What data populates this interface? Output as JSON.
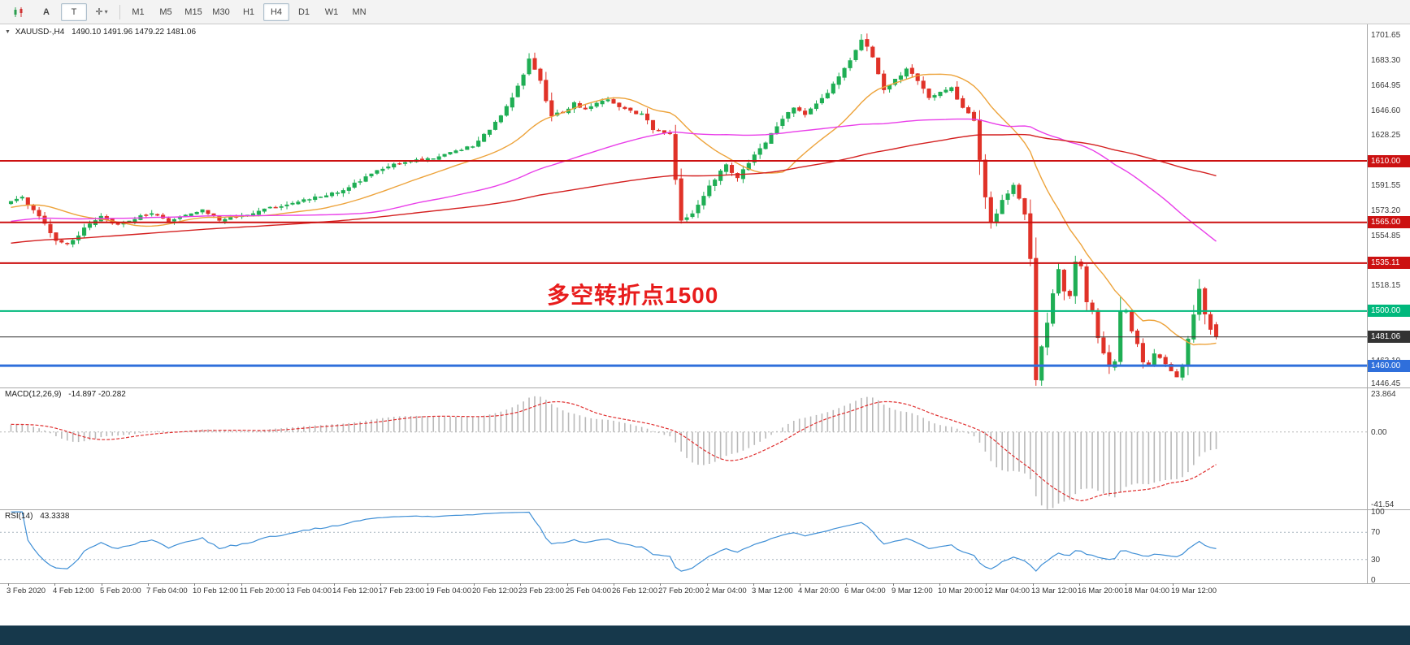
{
  "window": {
    "statusbar_color": "#16384b"
  },
  "toolbar": {
    "annotate_label": "A",
    "text_tool_label": "T",
    "cursor_glyph": "✛",
    "caret_glyph": "▾",
    "timeframes": [
      "M1",
      "M5",
      "M15",
      "M30",
      "H1",
      "H4",
      "D1",
      "W1",
      "MN"
    ],
    "active_timeframe": "H4"
  },
  "header": {
    "collapse_glyph": "▼",
    "symbol_text": "XAUUSD-,H4",
    "quote_text": "1490.10 1491.96 1479.22 1481.06"
  },
  "chart_data": {
    "type": "candlestick",
    "symbol": "XAUUSD-",
    "timeframe": "H4",
    "quote": {
      "open": 1490.1,
      "high": 1491.96,
      "low": 1479.22,
      "close": 1481.06
    },
    "price_axis": {
      "min": 1444,
      "max": 1710,
      "ticks": [
        "1701.65",
        "1683.30",
        "1664.95",
        "1646.60",
        "1628.25",
        "1609.90",
        "1591.55",
        "1573.20",
        "1554.85",
        "1536.50",
        "1518.15",
        "1499.80",
        "1481.45",
        "1463.10",
        "1446.45"
      ]
    },
    "levels": [
      {
        "price": 1610.0,
        "label": "1610.00",
        "color": "#cc1111",
        "width": 2
      },
      {
        "price": 1565.0,
        "label": "1565.00",
        "color": "#cc1111",
        "width": 2
      },
      {
        "price": 1535.11,
        "label": "1535.11",
        "color": "#cc1111",
        "width": 2
      },
      {
        "price": 1500.0,
        "label": "1500.00",
        "color": "#00b87c",
        "width": 2
      },
      {
        "price": 1460.0,
        "label": "1460.00",
        "color": "#2f6fdb",
        "width": 3
      }
    ],
    "current_price": {
      "value": 1481.06,
      "label": "1481.06",
      "color": "#333333"
    },
    "annotation": {
      "text": "多空转折点1500",
      "color": "#e81c1c",
      "x_frac": 0.4,
      "y_price": 1511
    },
    "candles": {
      "count": 215,
      "up_color": "#1fae54",
      "down_color": "#e03228",
      "anchors": [
        [
          0,
          1578
        ],
        [
          3,
          1583
        ],
        [
          6,
          1570
        ],
        [
          9,
          1552
        ],
        [
          11,
          1549
        ],
        [
          14,
          1560
        ],
        [
          17,
          1569
        ],
        [
          20,
          1563
        ],
        [
          23,
          1568
        ],
        [
          26,
          1572
        ],
        [
          29,
          1566
        ],
        [
          32,
          1570
        ],
        [
          35,
          1574
        ],
        [
          38,
          1567
        ],
        [
          41,
          1569
        ],
        [
          44,
          1572
        ],
        [
          47,
          1576
        ],
        [
          50,
          1578
        ],
        [
          53,
          1581
        ],
        [
          56,
          1584
        ],
        [
          59,
          1587
        ],
        [
          62,
          1593
        ],
        [
          65,
          1601
        ],
        [
          68,
          1606
        ],
        [
          71,
          1609
        ],
        [
          74,
          1611
        ],
        [
          77,
          1613
        ],
        [
          80,
          1617
        ],
        [
          83,
          1621
        ],
        [
          86,
          1633
        ],
        [
          89,
          1650
        ],
        [
          91,
          1664
        ],
        [
          93,
          1684
        ],
        [
          95,
          1668
        ],
        [
          97,
          1643
        ],
        [
          99,
          1646
        ],
        [
          101,
          1652
        ],
        [
          103,
          1647
        ],
        [
          105,
          1652
        ],
        [
          107,
          1655
        ],
        [
          109,
          1649
        ],
        [
          111,
          1646
        ],
        [
          113,
          1644
        ],
        [
          115,
          1634
        ],
        [
          118,
          1630
        ],
        [
          120,
          1566
        ],
        [
          122,
          1572
        ],
        [
          124,
          1585
        ],
        [
          126,
          1597
        ],
        [
          128,
          1607
        ],
        [
          130,
          1598
        ],
        [
          132,
          1609
        ],
        [
          134,
          1619
        ],
        [
          136,
          1630
        ],
        [
          138,
          1642
        ],
        [
          140,
          1648
        ],
        [
          142,
          1644
        ],
        [
          144,
          1651
        ],
        [
          146,
          1660
        ],
        [
          148,
          1671
        ],
        [
          150,
          1683
        ],
        [
          152,
          1699
        ],
        [
          154,
          1686
        ],
        [
          156,
          1663
        ],
        [
          158,
          1669
        ],
        [
          160,
          1677
        ],
        [
          162,
          1669
        ],
        [
          164,
          1656
        ],
        [
          166,
          1661
        ],
        [
          168,
          1663
        ],
        [
          170,
          1650
        ],
        [
          172,
          1640
        ],
        [
          174,
          1585
        ],
        [
          175,
          1563
        ],
        [
          177,
          1581
        ],
        [
          179,
          1593
        ],
        [
          181,
          1572
        ],
        [
          182,
          1540
        ],
        [
          183,
          1458
        ],
        [
          184,
          1478
        ],
        [
          185,
          1492
        ],
        [
          186,
          1510
        ],
        [
          187,
          1529
        ],
        [
          188,
          1516
        ],
        [
          189,
          1511
        ],
        [
          190,
          1536
        ],
        [
          191,
          1533
        ],
        [
          192,
          1508
        ],
        [
          193,
          1500
        ],
        [
          194,
          1482
        ],
        [
          195,
          1470
        ],
        [
          196,
          1459
        ],
        [
          197,
          1463
        ],
        [
          198,
          1496
        ],
        [
          199,
          1500
        ],
        [
          200,
          1483
        ],
        [
          201,
          1475
        ],
        [
          202,
          1463
        ],
        [
          203,
          1461
        ],
        [
          204,
          1470
        ],
        [
          206,
          1462
        ],
        [
          208,
          1452
        ],
        [
          209,
          1460
        ],
        [
          210,
          1478
        ],
        [
          211,
          1498
        ],
        [
          212,
          1514
        ],
        [
          213,
          1500
        ],
        [
          214,
          1488
        ],
        [
          215,
          1481
        ]
      ],
      "wick_overrides": {
        "11": {
          "low": 1547.2
        },
        "93": {
          "high": 1689.3
        },
        "152": {
          "high": 1703.3
        },
        "183": {
          "low": 1450.9
        },
        "208": {
          "low": 1451.5
        }
      }
    },
    "prehistory": {
      "start": 1520,
      "end": 1578,
      "count": 130
    },
    "moving_averages": [
      {
        "period": 20,
        "color": "#eda33b"
      },
      {
        "period": 60,
        "color": "#e93ee9"
      },
      {
        "period": 130,
        "color": "#d42020"
      }
    ],
    "macd": {
      "label": "MACD(12,26,9)",
      "values_text": "-14.897 -20.282",
      "fast": 12,
      "slow": 26,
      "signal_period": 9,
      "axis_max": 23.864,
      "axis_min": -41.54,
      "axis_labels": {
        "max": "23.864",
        "zero": "0.00",
        "min": "-41.54"
      },
      "bar_color": "#b9b9b9",
      "signal_color": "#e03030"
    },
    "rsi": {
      "label": "RSI(14)",
      "value_text": "43.3338",
      "period": 14,
      "color": "#3f8fd6",
      "axis_labels": [
        "100",
        "70",
        "30",
        "0"
      ],
      "axis_values": [
        100,
        70,
        30,
        0
      ],
      "level_lines": [
        70,
        30
      ]
    },
    "time_labels": [
      "3 Feb 2020",
      "4 Feb 12:00",
      "5 Feb 20:00",
      "7 Feb 04:00",
      "10 Feb 12:00",
      "11 Feb 20:00",
      "13 Feb 04:00",
      "14 Feb 12:00",
      "17 Feb 23:00",
      "19 Feb 04:00",
      "20 Feb 12:00",
      "23 Feb 23:00",
      "25 Feb 04:00",
      "26 Feb 12:00",
      "27 Feb 20:00",
      "2 Mar 04:00",
      "3 Mar 12:00",
      "4 Mar 20:00",
      "6 Mar 04:00",
      "9 Mar 12:00",
      "10 Mar 20:00",
      "12 Mar 04:00",
      "13 Mar 12:00",
      "16 Mar 20:00",
      "18 Mar 04:00",
      "19 Mar 12:00"
    ]
  }
}
